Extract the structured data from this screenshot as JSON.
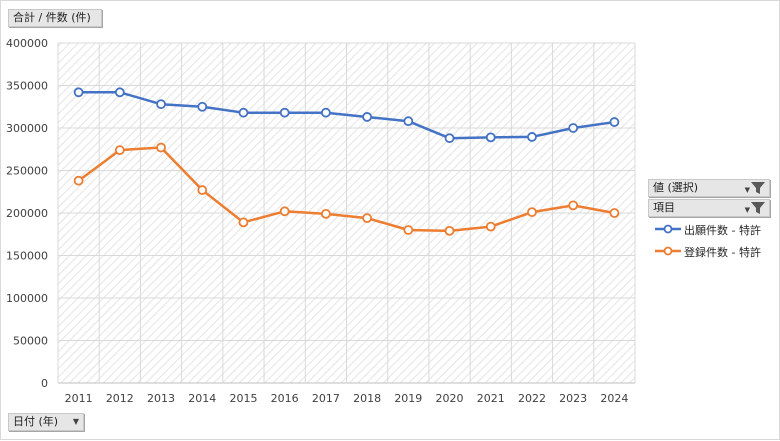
{
  "pivot": {
    "values_field_label": "合計 / 件数 (件)",
    "axis_field_label": "日付 (年)",
    "filter_value_label": "値 (選択)",
    "filter_item_label": "項目",
    "dropdown_icon": "chevron-down-icon",
    "filter_icon": "funnel-icon"
  },
  "chart_data": {
    "type": "line",
    "title": "",
    "xlabel": "",
    "ylabel": "",
    "categories": [
      "2011",
      "2012",
      "2013",
      "2014",
      "2015",
      "2016",
      "2017",
      "2018",
      "2019",
      "2020",
      "2021",
      "2022",
      "2023",
      "2024"
    ],
    "ylim": [
      0,
      400000
    ],
    "yticks": [
      0,
      50000,
      100000,
      150000,
      200000,
      250000,
      300000,
      350000,
      400000
    ],
    "yticklabels": [
      "0",
      "50000",
      "100000",
      "150000",
      "200000",
      "250000",
      "300000",
      "350000",
      "400000"
    ],
    "grid": true,
    "legend_position": "right",
    "series": [
      {
        "name": "出願件数 - 特許",
        "color": "#4472c4",
        "values": [
          342000,
          342000,
          328000,
          325000,
          318000,
          318000,
          318000,
          313000,
          308000,
          288000,
          289000,
          289500,
          300000,
          307000
        ]
      },
      {
        "name": "登録件数 - 特許",
        "color": "#ed7d31",
        "values": [
          238000,
          274000,
          277000,
          227000,
          189000,
          202000,
          199000,
          194000,
          180000,
          179000,
          184000,
          201000,
          209000,
          200000
        ]
      }
    ]
  }
}
